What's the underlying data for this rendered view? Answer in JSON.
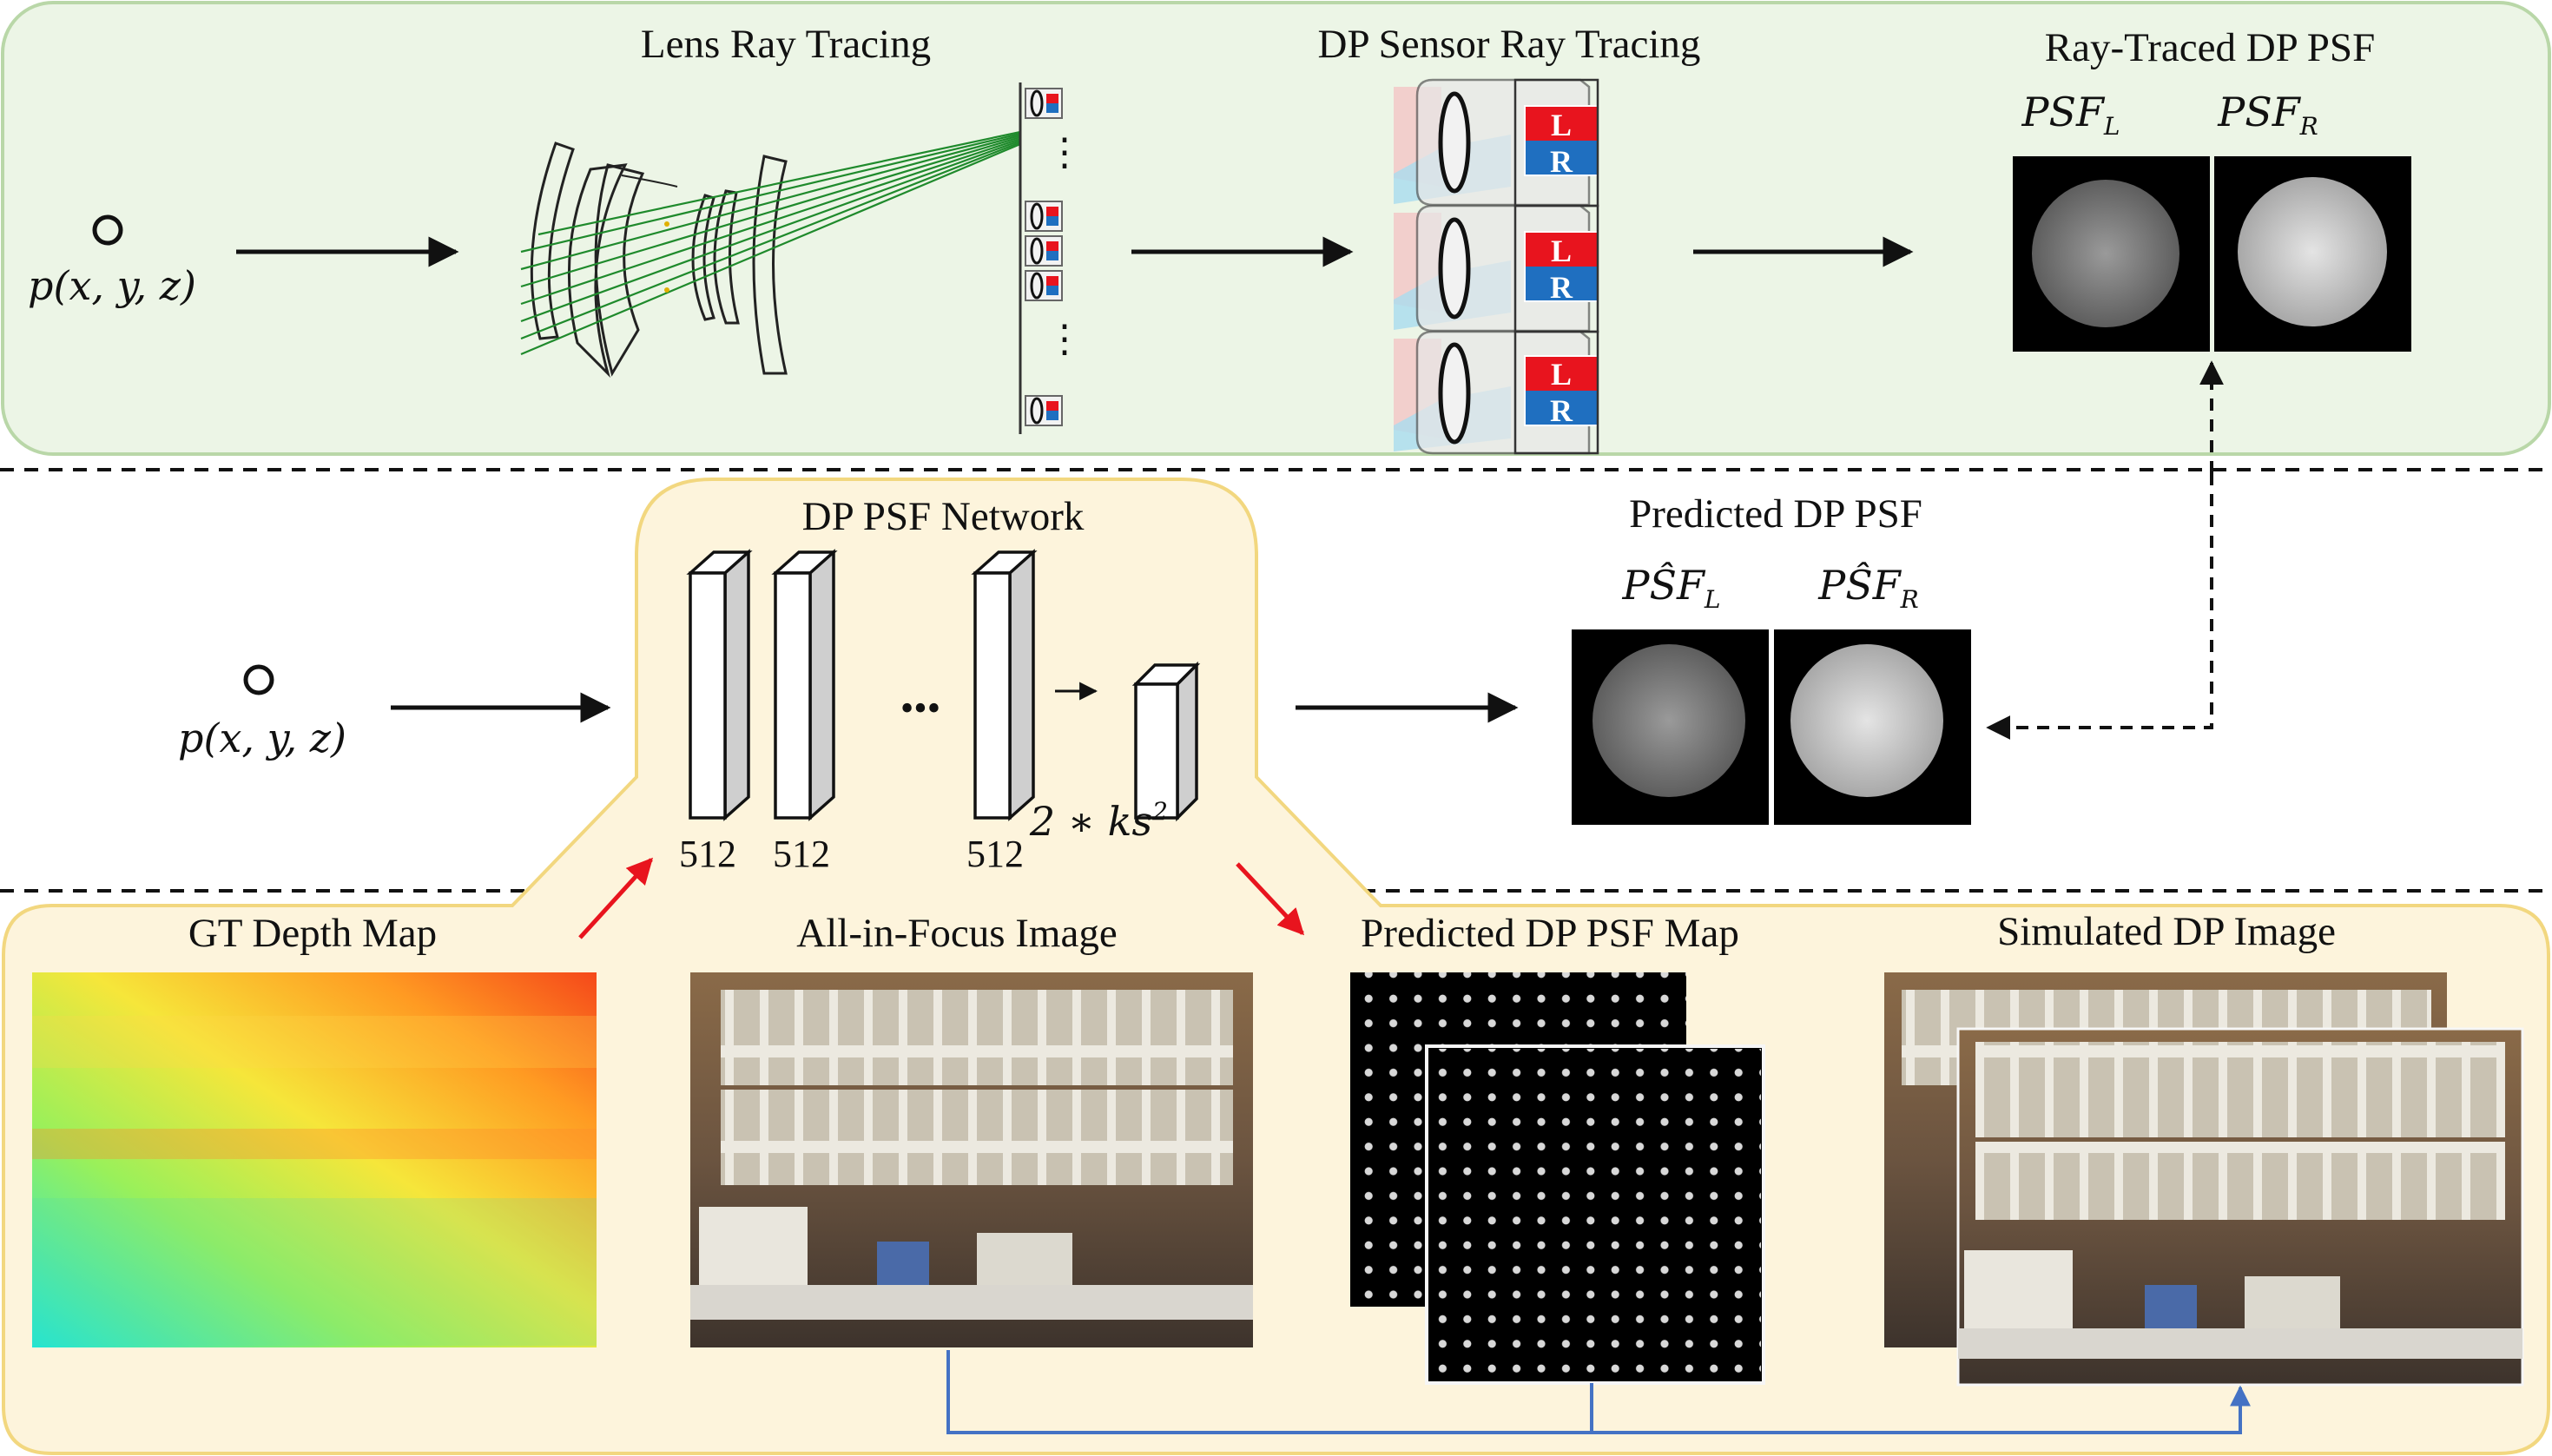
{
  "titles": {
    "lens_ray_tracing": "Lens Ray Tracing",
    "dp_sensor_ray_tracing": "DP Sensor Ray Tracing",
    "ray_traced_dp_psf": "Ray-Traced DP PSF",
    "dp_psf_network": "DP PSF Network",
    "predicted_dp_psf": "Predicted DP PSF",
    "gt_depth_map": "GT Depth Map",
    "all_in_focus_image": "All-in-Focus Image",
    "predicted_dp_psf_map": "Predicted DP PSF Map",
    "simulated_dp_image": "Simulated DP Image"
  },
  "point_label": "p(x, y, z)",
  "psf_labels": {
    "ray_left": "PSF",
    "ray_left_sub": "L",
    "ray_right": "PSF",
    "ray_right_sub": "R",
    "pred_left": "PŜF",
    "pred_left_sub": "L",
    "pred_right": "PŜF",
    "pred_right_sub": "R"
  },
  "sensor_letters": {
    "left": "L",
    "right": "R"
  },
  "network": {
    "layers": [
      "512",
      "512",
      "512"
    ],
    "ellipsis": "•••",
    "output_label": "2 ∗ ks",
    "output_exp": "2"
  },
  "colors": {
    "green_panel_fill": "#ecf5e6",
    "green_panel_border": "#b9d7a8",
    "yellow_panel_fill": "#fdf4dc",
    "yellow_panel_border": "#f2d77f",
    "sensor_left": "#e8141e",
    "sensor_right": "#1f6fc0",
    "rays_green": "#1f8a2c",
    "flow_blue": "#4472c4",
    "flow_red": "#e8141e"
  }
}
